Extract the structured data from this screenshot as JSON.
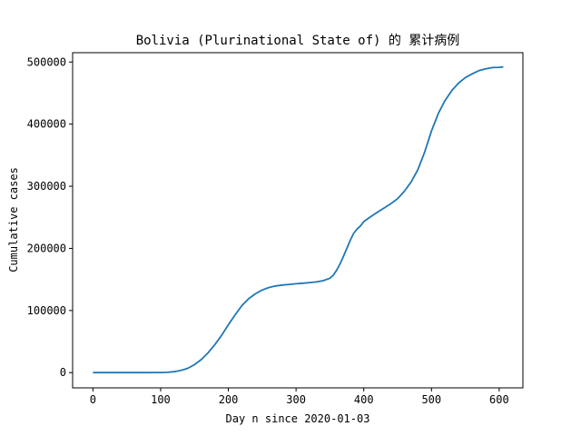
{
  "chart_data": {
    "type": "line",
    "title": "Bolivia (Plurinational State of) 的 累计病例",
    "xlabel": "Day n since 2020-01-03",
    "ylabel": "Cumulative cases",
    "xlim": [
      -30,
      635
    ],
    "ylim": [
      -24500,
      515000
    ],
    "grid": false,
    "x_ticks": [
      0,
      100,
      200,
      300,
      400,
      500,
      600
    ],
    "x_tick_labels": [
      "0",
      "100",
      "200",
      "300",
      "400",
      "500",
      "600"
    ],
    "y_ticks": [
      0,
      100000,
      200000,
      300000,
      400000,
      500000
    ],
    "y_tick_labels": [
      "0",
      "100000",
      "200000",
      "300000",
      "400000",
      "500000"
    ],
    "series": [
      {
        "color": "#1f77b4",
        "x": [
          0,
          20,
          40,
          60,
          80,
          100,
          110,
          120,
          130,
          140,
          150,
          160,
          170,
          180,
          190,
          200,
          210,
          220,
          230,
          240,
          250,
          260,
          270,
          280,
          290,
          300,
          310,
          320,
          330,
          340,
          350,
          355,
          360,
          365,
          370,
          375,
          380,
          385,
          390,
          395,
          400,
          410,
          420,
          430,
          440,
          450,
          460,
          470,
          480,
          490,
          500,
          510,
          520,
          530,
          540,
          550,
          560,
          570,
          580,
          590,
          600,
          606
        ],
        "y": [
          0,
          0,
          0,
          0,
          0,
          200,
          500,
          1500,
          3500,
          7000,
          13000,
          21000,
          32000,
          45000,
          60000,
          77000,
          93000,
          108000,
          119000,
          127000,
          133000,
          137000,
          139500,
          141000,
          142000,
          143000,
          144000,
          145000,
          146000,
          148000,
          152000,
          157000,
          165000,
          175000,
          187000,
          200000,
          213000,
          224000,
          231000,
          236000,
          243000,
          251000,
          258000,
          265000,
          272000,
          280000,
          292000,
          307000,
          327000,
          355000,
          389000,
          417000,
          438000,
          454000,
          466000,
          475000,
          481000,
          486000,
          489000,
          491000,
          491500,
          492000
        ]
      }
    ]
  }
}
